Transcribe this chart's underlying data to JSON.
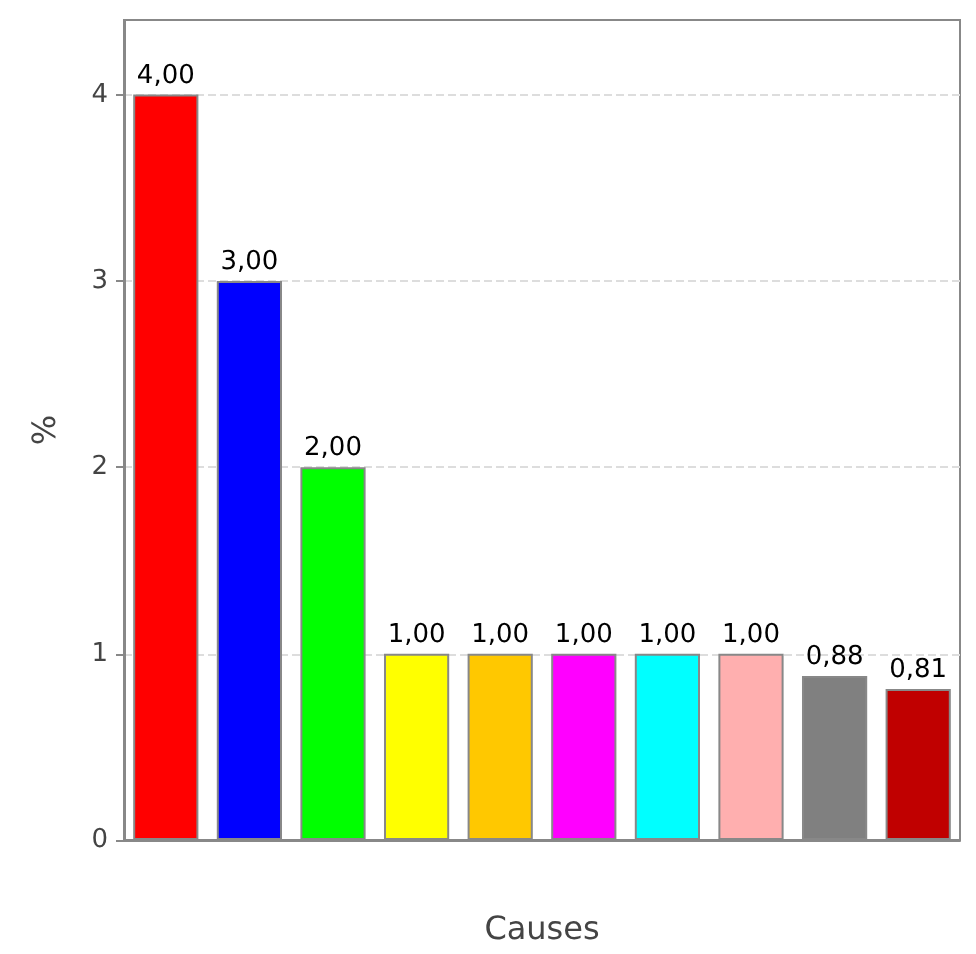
{
  "chart_data": {
    "type": "bar",
    "xlabel": "Causes",
    "ylabel": "%",
    "categories": [
      null,
      null,
      null,
      null,
      null,
      null,
      null,
      null,
      null,
      null
    ],
    "values": [
      4,
      3,
      2,
      1,
      1,
      1,
      1,
      1,
      0.88,
      0.81
    ],
    "colors": [
      "#ff0000",
      "#0000ff",
      "#00ff00",
      "#ffff00",
      "#ffc800",
      "#ff00ff",
      "#00ffff",
      "#ffafaf",
      "#808080",
      "#c00000"
    ],
    "value_labels": [
      "4,00",
      "3,00",
      "2,00",
      "1,00",
      "1,00",
      "1,00",
      "1,00",
      "1,00",
      "0,88",
      "0,81"
    ],
    "ylim": [
      0,
      4.4
    ],
    "yticks": [
      0,
      1,
      2,
      3,
      4
    ],
    "grid": "y"
  }
}
